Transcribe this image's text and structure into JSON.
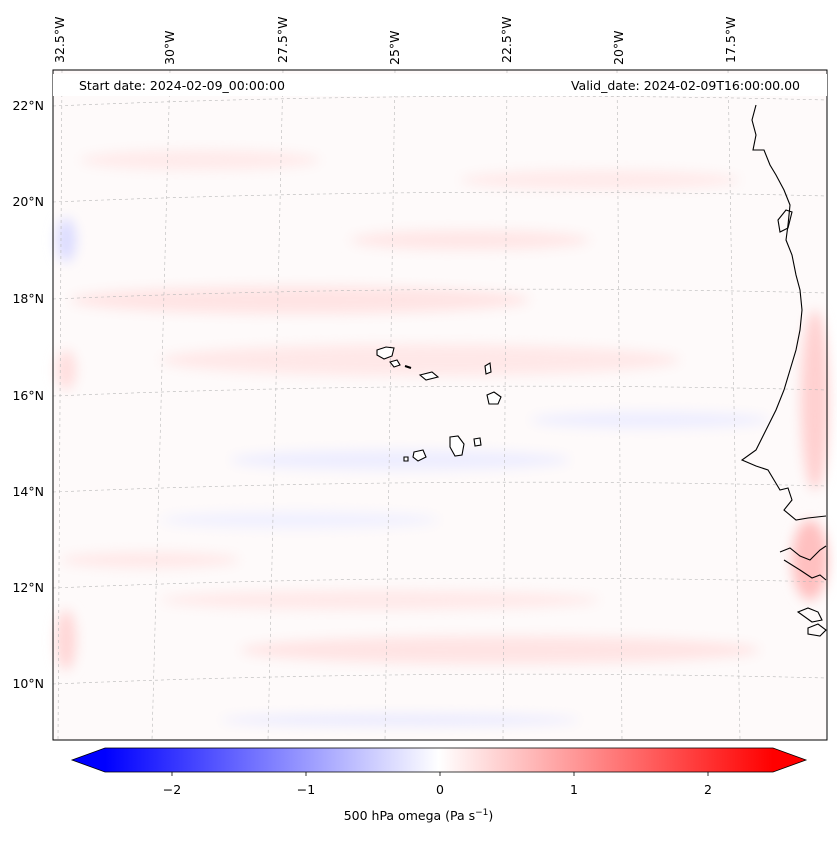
{
  "map": {
    "start_date_label": "Start date: 2024-02-09_00:00:00",
    "valid_date_label": "Valid_date: 2024-02-09T16:00:00.00",
    "lon_labels": [
      "32.5°W",
      "30°W",
      "27.5°W",
      "25°W",
      "22.5°W",
      "20°W",
      "17.5°W"
    ],
    "lat_labels": [
      "22°N",
      "20°N",
      "18°N",
      "16°N",
      "14°N",
      "12°N",
      "10°N"
    ],
    "colors": {
      "positive": "#ff0000",
      "negative": "#0000ff",
      "zero": "#ffffff",
      "coast": "#000000"
    }
  },
  "colorbar": {
    "ticks": [
      "−2",
      "−1",
      "0",
      "1",
      "2"
    ],
    "label_prefix": "500 hPa omega (Pa s",
    "label_exp": "−1",
    "label_suffix": ")",
    "range": [
      -2.5,
      2.5
    ]
  }
}
